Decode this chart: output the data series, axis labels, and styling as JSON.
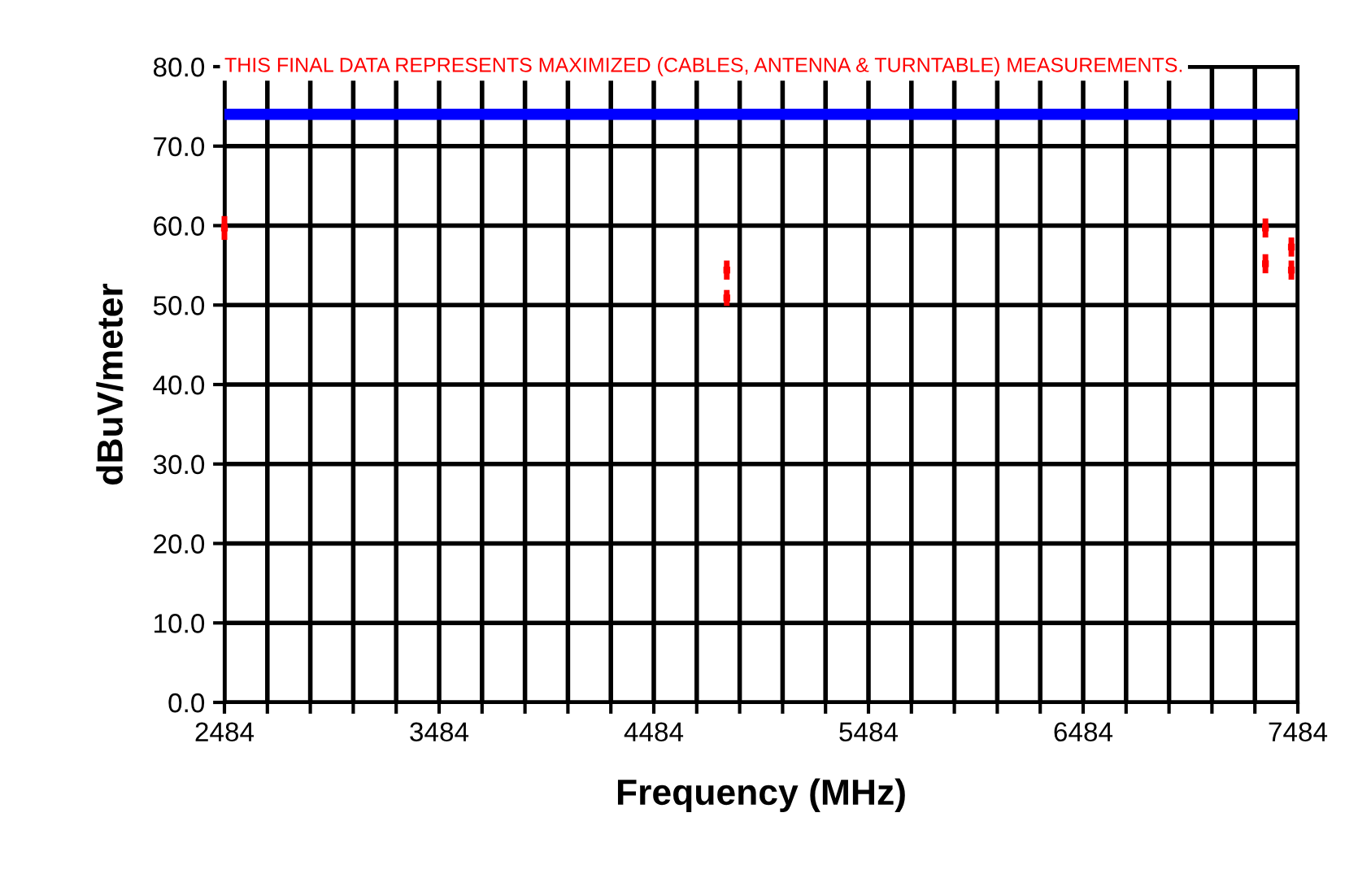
{
  "chart_data": {
    "type": "scatter",
    "xlabel": "Frequency (MHz)",
    "ylabel": "dBuV/meter",
    "annotations": [
      "THIS FINAL DATA REPRESENTS MAXIMIZED (CABLES, ANTENNA & TURNTABLE) MEASUREMENTS."
    ],
    "x": [
      2484,
      4824,
      7333,
      7454
    ],
    "marker": "square",
    "series": [
      {
        "color": "#ff0000",
        "values": [
          59.7,
          54.4,
          59.7,
          57.3
        ],
        "errors": [
          1.5,
          1.2,
          1.2,
          1.2
        ]
      },
      {
        "color": "#ff0000",
        "values": [
          null,
          50.9,
          55.2,
          54.4
        ],
        "errors": [
          null,
          1.0,
          1.2,
          1.2
        ]
      }
    ],
    "xlim": [
      2484,
      7484
    ],
    "xticks": [
      2484,
      {
        "value": 2684,
        "label": null
      },
      {
        "value": 2884,
        "label": null
      },
      {
        "value": 3084,
        "label": null
      },
      {
        "value": 3284,
        "label": null
      },
      3484,
      {
        "value": 3684,
        "label": null
      },
      {
        "value": 3884,
        "label": null
      },
      {
        "value": 4084,
        "label": null
      },
      {
        "value": 4284,
        "label": null
      },
      4484,
      {
        "value": 4684,
        "label": null
      },
      {
        "value": 4884,
        "label": null
      },
      {
        "value": 5084,
        "label": null
      },
      {
        "value": 5284,
        "label": null
      },
      5484,
      {
        "value": 5684,
        "label": null
      },
      {
        "value": 5884,
        "label": null
      },
      {
        "value": 6084,
        "label": null
      },
      {
        "value": 6284,
        "label": null
      },
      6484,
      {
        "value": 6684,
        "label": null
      },
      {
        "value": 6884,
        "label": null
      },
      {
        "value": 7084,
        "label": null
      },
      {
        "value": 7284,
        "label": null
      },
      7484
    ],
    "ylim": [
      0,
      80
    ],
    "yticks": [
      {
        "value": 0,
        "label": "0.0"
      },
      {
        "value": 10,
        "label": "10.0"
      },
      {
        "value": 20,
        "label": "20.0"
      },
      {
        "value": 30,
        "label": "30.0"
      },
      {
        "value": 40,
        "label": "40.0"
      },
      {
        "value": 50,
        "label": "50.0"
      },
      {
        "value": 60,
        "label": "60.0"
      },
      {
        "value": 70,
        "label": "70.0"
      },
      {
        "value": 80,
        "label": "80.0"
      }
    ],
    "grid": true,
    "ref_lines": [
      {
        "axis": "y",
        "value": 74,
        "color": "#0000ff"
      }
    ]
  }
}
